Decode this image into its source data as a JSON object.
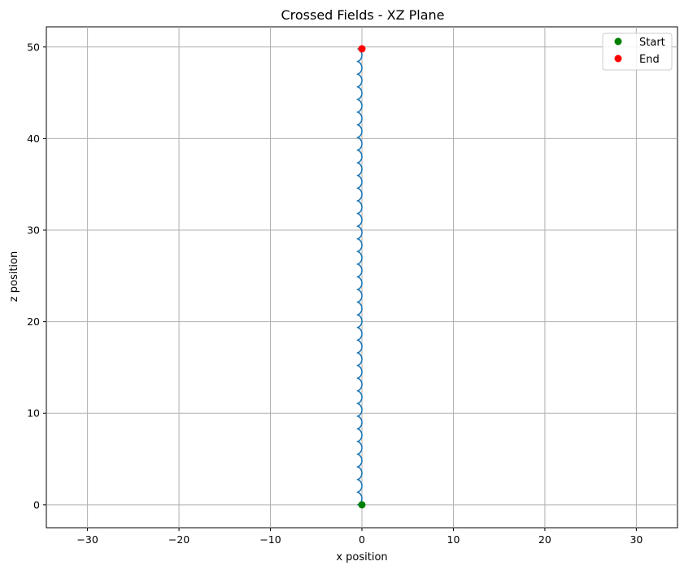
{
  "chart_data": {
    "type": "line",
    "title": "Crossed Fields - XZ Plane",
    "xlabel": "x position",
    "ylabel": "z position",
    "xlim": [
      -34.5,
      34.5
    ],
    "ylim": [
      -2.5,
      52.2
    ],
    "xticks": [
      -30,
      -20,
      -10,
      0,
      10,
      20,
      30
    ],
    "yticks": [
      0,
      10,
      20,
      30,
      40,
      50
    ],
    "xtick_labels": [
      "−30",
      "−20",
      "−10",
      "0",
      "10",
      "20",
      "30"
    ],
    "ytick_labels": [
      "0",
      "10",
      "20",
      "30",
      "40",
      "50"
    ],
    "grid": true,
    "legend_position": "top-right",
    "series": [
      {
        "kind": "trajectory",
        "color": "#1f77b4",
        "cycloid": {
          "x_center": -0.25,
          "amplitude": 0.25,
          "loops": 36,
          "z_start": 0,
          "z_end": 49.8
        }
      },
      {
        "name": "Start",
        "kind": "marker",
        "color": "#008000",
        "x": 0,
        "y": 0
      },
      {
        "name": "End",
        "kind": "marker",
        "color": "#ff0000",
        "x": 0,
        "y": 49.8
      }
    ]
  }
}
